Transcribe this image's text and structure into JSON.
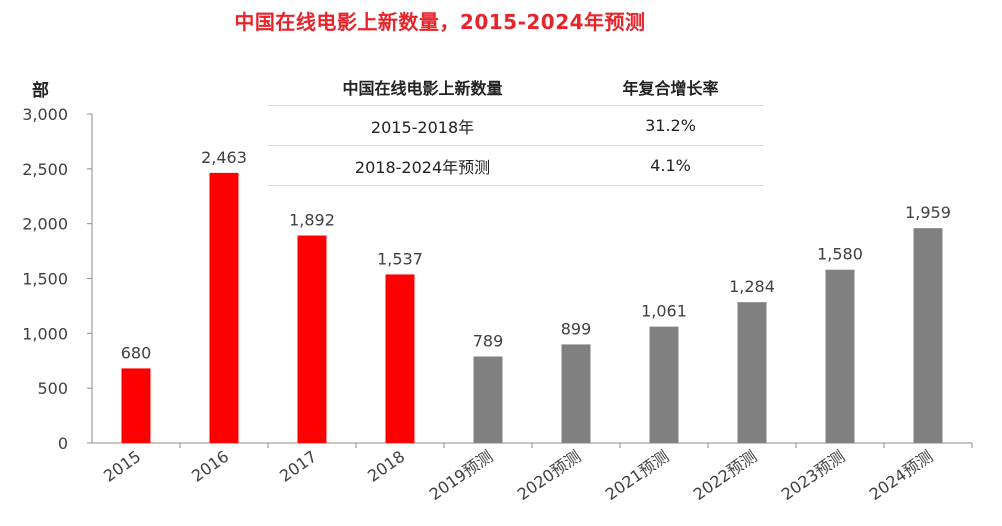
{
  "chart_data": {
    "type": "bar",
    "title": "中国在线电影上新数量，2015-2024年预测",
    "ylabel": "部",
    "xlabel": "",
    "ylim": [
      0,
      3000
    ],
    "yticks": [
      0,
      500,
      1000,
      1500,
      2000,
      2500,
      3000
    ],
    "ytick_labels": [
      "0",
      "500",
      "1,000",
      "1,500",
      "2,000",
      "2,500",
      "3,000"
    ],
    "categories": [
      "2015",
      "2016",
      "2017",
      "2018",
      "2019预测",
      "2020预测",
      "2021预测",
      "2022预测",
      "2023预测",
      "2024预测"
    ],
    "values": [
      680,
      2463,
      1892,
      1537,
      789,
      899,
      1061,
      1284,
      1580,
      1959
    ],
    "value_labels": [
      "680",
      "2,463",
      "1,892",
      "1,537",
      "789",
      "899",
      "1,061",
      "1,284",
      "1,580",
      "1,959"
    ],
    "bar_colors": [
      "#ff0000",
      "#ff0000",
      "#ff0000",
      "#ff0000",
      "#808080",
      "#808080",
      "#808080",
      "#808080",
      "#808080",
      "#808080"
    ],
    "grid": false
  },
  "cagr_table": {
    "headers": [
      "中国在线电影上新数量",
      "年复合增长率"
    ],
    "rows": [
      [
        "2015-2018年",
        "31.2%"
      ],
      [
        "2018-2024年预测",
        "4.1%"
      ]
    ]
  },
  "colors": {
    "title": "#e8232a",
    "actual": "#ff0000",
    "forecast": "#808080"
  }
}
